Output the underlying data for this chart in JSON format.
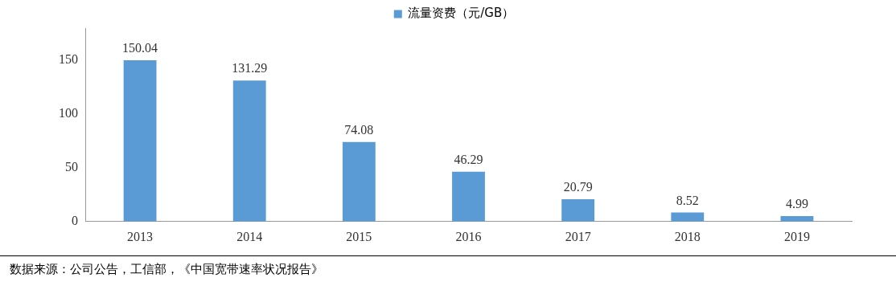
{
  "chart_data": {
    "type": "bar",
    "categories": [
      "2013",
      "2014",
      "2015",
      "2016",
      "2017",
      "2018",
      "2019"
    ],
    "series": [
      {
        "name": "流量资费（元/GB）",
        "color": "#5b9bd5",
        "values": [
          150.04,
          131.29,
          74.08,
          46.29,
          20.79,
          8.52,
          4.99
        ]
      }
    ],
    "ylim": [
      0,
      180
    ],
    "yticks": [
      0,
      50,
      100,
      150
    ],
    "grid": false,
    "legend": "top",
    "data_labels": true,
    "annotations": [
      "数据来源：公司公告，工信部，《中国宽带速率状况报告》"
    ]
  }
}
